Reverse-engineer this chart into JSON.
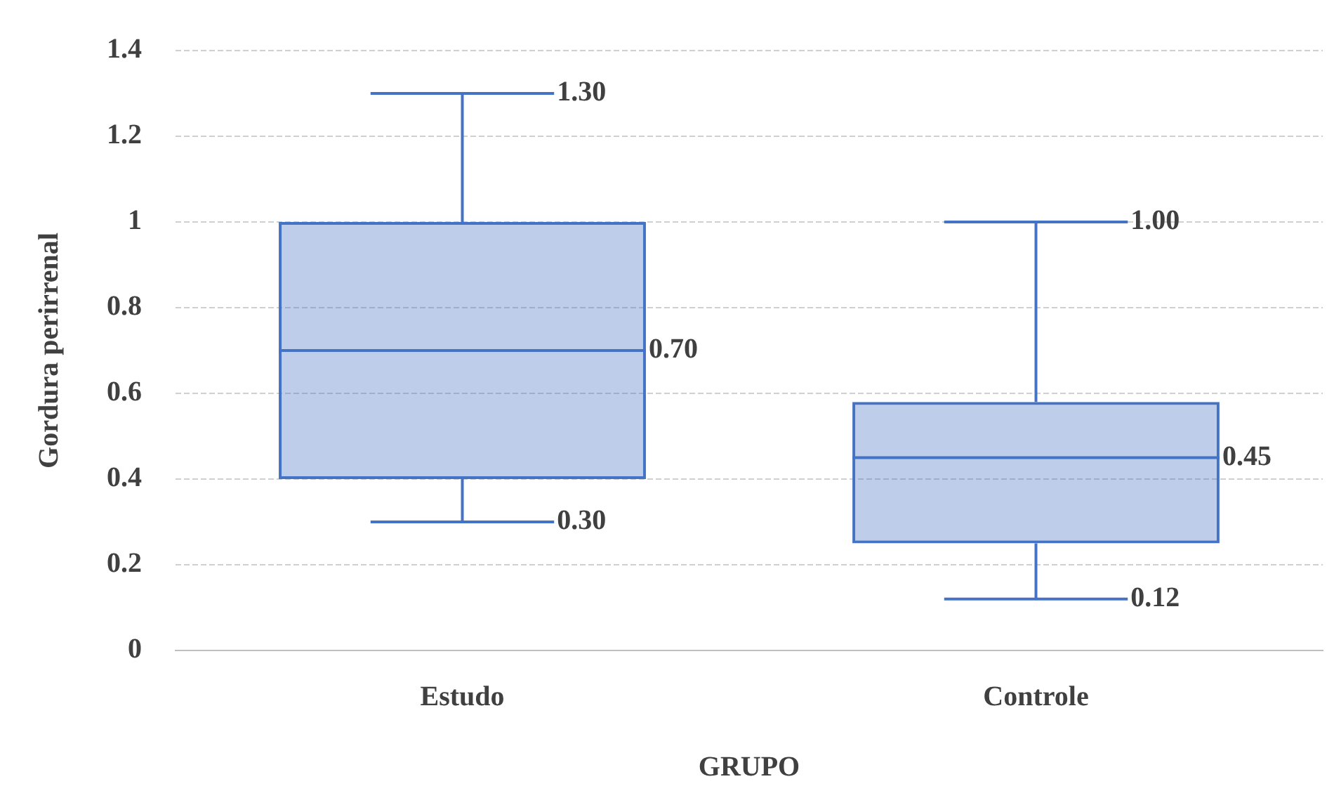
{
  "chart_data": {
    "type": "box",
    "xlabel": "GRUPO",
    "ylabel": "Gordura perirrenal",
    "categories": [
      "Estudo",
      "Controle"
    ],
    "color": "#4472c4",
    "ylim": [
      0,
      1.4
    ],
    "yticks": [
      0,
      0.2,
      0.4,
      0.6,
      0.8,
      1,
      1.2,
      1.4
    ],
    "grid": "y",
    "boxes": [
      {
        "low": 0.3,
        "q1": 0.4,
        "median": 0.7,
        "q3": 1.0,
        "high": 1.3
      },
      {
        "low": 0.12,
        "q1": 0.25,
        "median": 0.45,
        "q3": 0.58,
        "high": 1.0
      }
    ],
    "annotations": [
      "1.30",
      "0.70",
      "0.30",
      "1.00",
      "0.45",
      "0.12"
    ]
  }
}
